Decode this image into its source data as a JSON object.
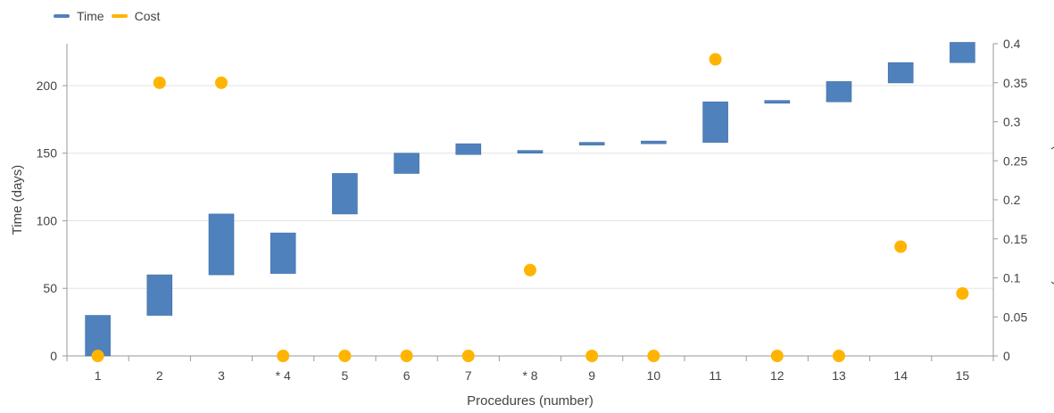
{
  "legend": {
    "time_label": "Time",
    "cost_label": "Cost"
  },
  "colors": {
    "time": "#4f81bd",
    "cost": "#ffb400",
    "grid": "#e3e3e3",
    "axis": "#9a9a9a"
  },
  "chart_data": {
    "type": "waterfall-with-scatter",
    "categories": [
      "1",
      "2",
      "3",
      "* 4",
      "5",
      "6",
      "7",
      "* 8",
      "9",
      "10",
      "11",
      "12",
      "13",
      "14",
      "15"
    ],
    "series": [
      {
        "name": "Time",
        "axis": "left",
        "kind": "floating-bar",
        "ranges": [
          [
            0,
            30
          ],
          [
            30,
            60
          ],
          [
            60,
            105
          ],
          [
            61,
            91
          ],
          [
            105,
            135
          ],
          [
            135,
            150
          ],
          [
            149,
            157
          ],
          [
            150,
            152
          ],
          [
            156,
            158
          ],
          [
            157,
            159
          ],
          [
            158,
            188
          ],
          [
            187,
            189
          ],
          [
            188,
            203
          ],
          [
            202,
            217
          ],
          [
            217,
            232
          ]
        ]
      },
      {
        "name": "Cost",
        "axis": "right",
        "kind": "scatter",
        "values": [
          0,
          0.35,
          0.35,
          0,
          0,
          0,
          0,
          0.11,
          0,
          0,
          0.38,
          0,
          0,
          0.14,
          0.08
        ]
      }
    ],
    "y_left": {
      "label": "Time (days)",
      "min": 0,
      "max": 231,
      "ticks": [
        0,
        50,
        100,
        150,
        200
      ]
    },
    "y_right": {
      "label": "Cost (% of warehouse value)",
      "min": 0,
      "max": 0.4,
      "ticks": [
        "0",
        "0.05",
        "0.1",
        "0.15",
        "0.2",
        "0.25",
        "0.3",
        "0.35",
        "0.4"
      ]
    },
    "xlabel": "Procedures (number)",
    "legend_position": "top-left",
    "grid": true
  }
}
